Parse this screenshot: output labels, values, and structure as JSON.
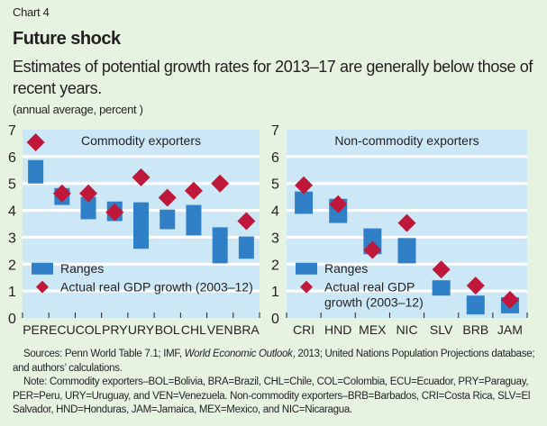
{
  "header": {
    "chart_label": "Chart 4",
    "title": "Future shock",
    "subtitle": "Estimates of potential growth rates for 2013–17 are generally below those of recent years.",
    "unit": "(annual average, percent )"
  },
  "colors": {
    "background": "#e6f3e0",
    "plot_bg": "#cce8f7",
    "range_bar": "#3080c8",
    "diamond": "#c0183a",
    "grid": "#ffffff"
  },
  "chart_data": [
    {
      "type": "range-bar-with-markers",
      "title": "Commodity exporters",
      "ylim": [
        0,
        7
      ],
      "yticks": [
        "0",
        "1",
        "2",
        "3",
        "4",
        "5",
        "6",
        "7"
      ],
      "grid": true,
      "categories": [
        "PER",
        "ECU",
        "COL",
        "PRY",
        "URY",
        "BOL",
        "CHL",
        "VEN",
        "BRA"
      ],
      "ranges": [
        [
          5.0,
          5.87
        ],
        [
          4.2,
          4.83
        ],
        [
          3.67,
          4.5
        ],
        [
          3.6,
          4.33
        ],
        [
          2.57,
          4.3
        ],
        [
          3.3,
          4.03
        ],
        [
          3.07,
          4.2
        ],
        [
          2.03,
          3.37
        ],
        [
          2.2,
          3.03
        ]
      ],
      "actual": [
        6.53,
        4.63,
        4.63,
        3.93,
        5.23,
        4.47,
        4.73,
        5.0,
        3.6
      ],
      "legend": {
        "ranges": "Ranges",
        "actual": "Actual real GDP growth (2003–12)",
        "placement": "bottom-left"
      }
    },
    {
      "type": "range-bar-with-markers",
      "title": "Non-commodity exporters",
      "ylim": [
        0,
        7
      ],
      "yticks": [
        "0",
        "1",
        "2",
        "3",
        "4",
        "5",
        "6",
        "7"
      ],
      "grid": true,
      "categories": [
        "CRI",
        "HND",
        "MEX",
        "NIC",
        "SLV",
        "BRB",
        "JAM"
      ],
      "ranges": [
        [
          3.87,
          4.7
        ],
        [
          3.53,
          4.43
        ],
        [
          2.37,
          3.33
        ],
        [
          2.03,
          2.97
        ],
        [
          0.83,
          1.4
        ],
        [
          0.13,
          0.83
        ],
        [
          0.17,
          0.77
        ]
      ],
      "actual": [
        4.93,
        4.23,
        2.53,
        3.53,
        1.8,
        1.2,
        0.67
      ],
      "legend": {
        "ranges": "Ranges",
        "actual_line1": "Actual real GDP",
        "actual_line2": "growth (2003–12)",
        "placement": "bottom-left"
      }
    }
  ],
  "footer": {
    "sources_prefix": "Sources: Penn World Table 7.1; IMF, ",
    "sources_italic": "World Economic Outlook",
    "sources_suffix": ", 2013; United Nations Population Projections database; and authors’ calculations.",
    "note": "Note: Commodity exporters–BOL=Bolivia, BRA=Brazil, CHL=Chile, COL=Colombia, ECU=Ecuador, PRY=Paraguay, PER=Peru, URY=Uruguay, and VEN=Venezuela. Non-commodity exporters–BRB=Barbados, CRI=Costa Rica, SLV=El Salvador, HND=Honduras, JAM=Jamaica, MEX=Mexico, and NIC=Nicaragua."
  }
}
